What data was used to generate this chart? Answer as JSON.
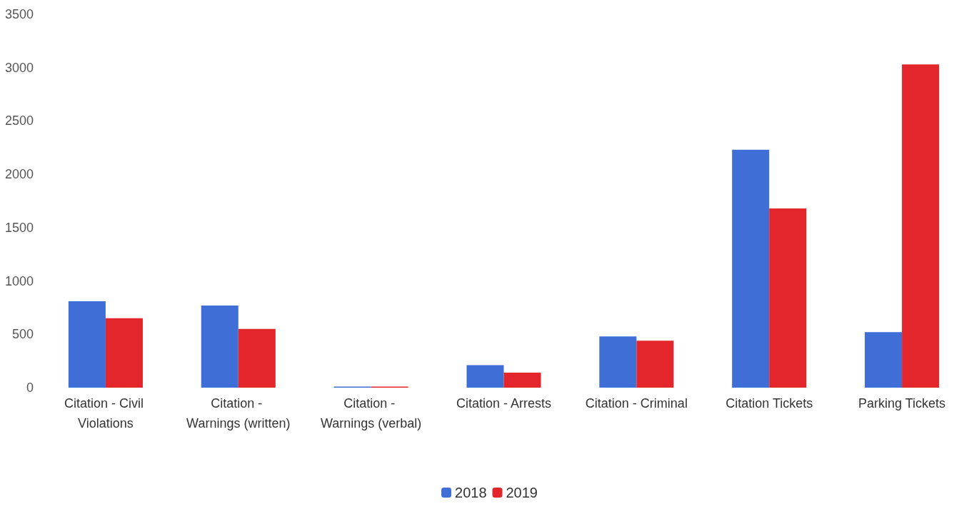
{
  "chart_data": {
    "type": "bar",
    "categories": [
      "Citation - Civil Violations",
      "Citation - Warnings (written)",
      "Citation - Warnings (verbal)",
      "Citation - Arrests",
      "Citation - Criminal",
      "Citation Tickets",
      "Parking Tickets"
    ],
    "series": [
      {
        "name": "2018",
        "color": "#3f6fd6",
        "values": [
          810,
          770,
          10,
          210,
          480,
          2230,
          520
        ]
      },
      {
        "name": "2019",
        "color": "#e3262b",
        "values": [
          650,
          550,
          10,
          140,
          440,
          1680,
          3030
        ]
      }
    ],
    "ylim": [
      0,
      3500
    ],
    "yticks": [
      0,
      500,
      1000,
      1500,
      2000,
      2500,
      3000,
      3500
    ],
    "grid": false,
    "legend": "bottom"
  }
}
